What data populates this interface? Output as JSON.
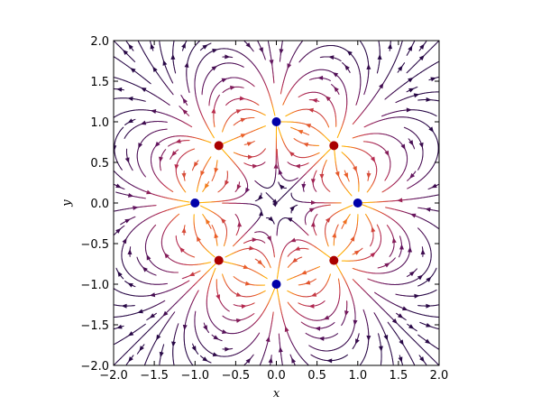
{
  "chart_data": {
    "type": "streamplot",
    "xlabel": "x",
    "ylabel": "y",
    "xlim": [
      -2.0,
      2.0
    ],
    "ylim": [
      -2.0,
      2.0
    ],
    "xticks": [
      "−2.0",
      "−1.5",
      "−1.0",
      "−0.5",
      "0.0",
      "0.5",
      "1.0",
      "1.5",
      "2.0"
    ],
    "yticks": [
      "−2.0",
      "−1.5",
      "−1.0",
      "−0.5",
      "0.0",
      "0.5",
      "1.0",
      "1.5",
      "2.0"
    ],
    "grid": false,
    "field": "electric field of point charges",
    "colormap": "inferno (field magnitude)",
    "positive_charges": [
      {
        "x": -0.707,
        "y": 0.707
      },
      {
        "x": 0.707,
        "y": 0.707
      },
      {
        "x": -0.707,
        "y": -0.707
      },
      {
        "x": 0.707,
        "y": -0.707
      }
    ],
    "negative_charges": [
      {
        "x": 0.0,
        "y": 1.0
      },
      {
        "x": -1.0,
        "y": 0.0
      },
      {
        "x": 1.0,
        "y": 0.0
      },
      {
        "x": 0.0,
        "y": -1.0
      }
    ],
    "colors": {
      "positive_charge": "#aa0000",
      "negative_charge": "#0000aa",
      "stream_low": "#2b0a4a",
      "stream_high": "#ffb000"
    }
  }
}
